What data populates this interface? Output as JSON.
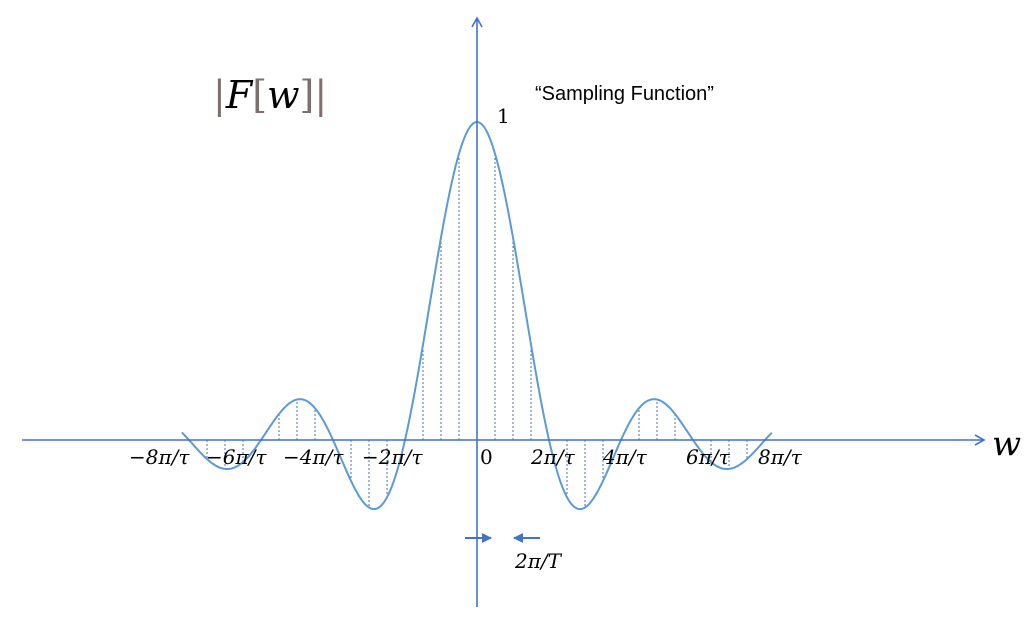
{
  "title_label": "|F[w]|",
  "title_parts": {
    "bar_left": "|",
    "F": "F",
    "bracket_left": "[",
    "w": "w",
    "bracket_right": "]",
    "bar_right": "|"
  },
  "subtitle": "“Sampling Function”",
  "peak_label": "1",
  "x_axis_label": "w",
  "tick_labels": [
    "−8π/τ",
    "−6π/τ",
    "−4π/τ",
    "−2π/τ",
    "0",
    "2π/τ",
    "4π/τ",
    "6π/τ",
    "8π/τ"
  ],
  "spacing_label": "2π/T",
  "colors": {
    "axis": "#4472C4",
    "curve": "#5B9BD5",
    "samples": "#4472C4",
    "title": "#7F6E6E",
    "text": "#000000"
  },
  "chart_data": {
    "type": "line",
    "function": "sin(x)/x",
    "peak_value": 1,
    "zero_crossings": [
      "−8π/τ",
      "−6π/τ",
      "−4π/τ",
      "−2π/τ",
      "2π/τ",
      "4π/τ",
      "6π/τ",
      "8π/τ"
    ],
    "sample_spacing": "2π/T",
    "samples_per_lobe_interval": 4,
    "x_range_in_lobes": [
      -4.1,
      4.1
    ]
  }
}
